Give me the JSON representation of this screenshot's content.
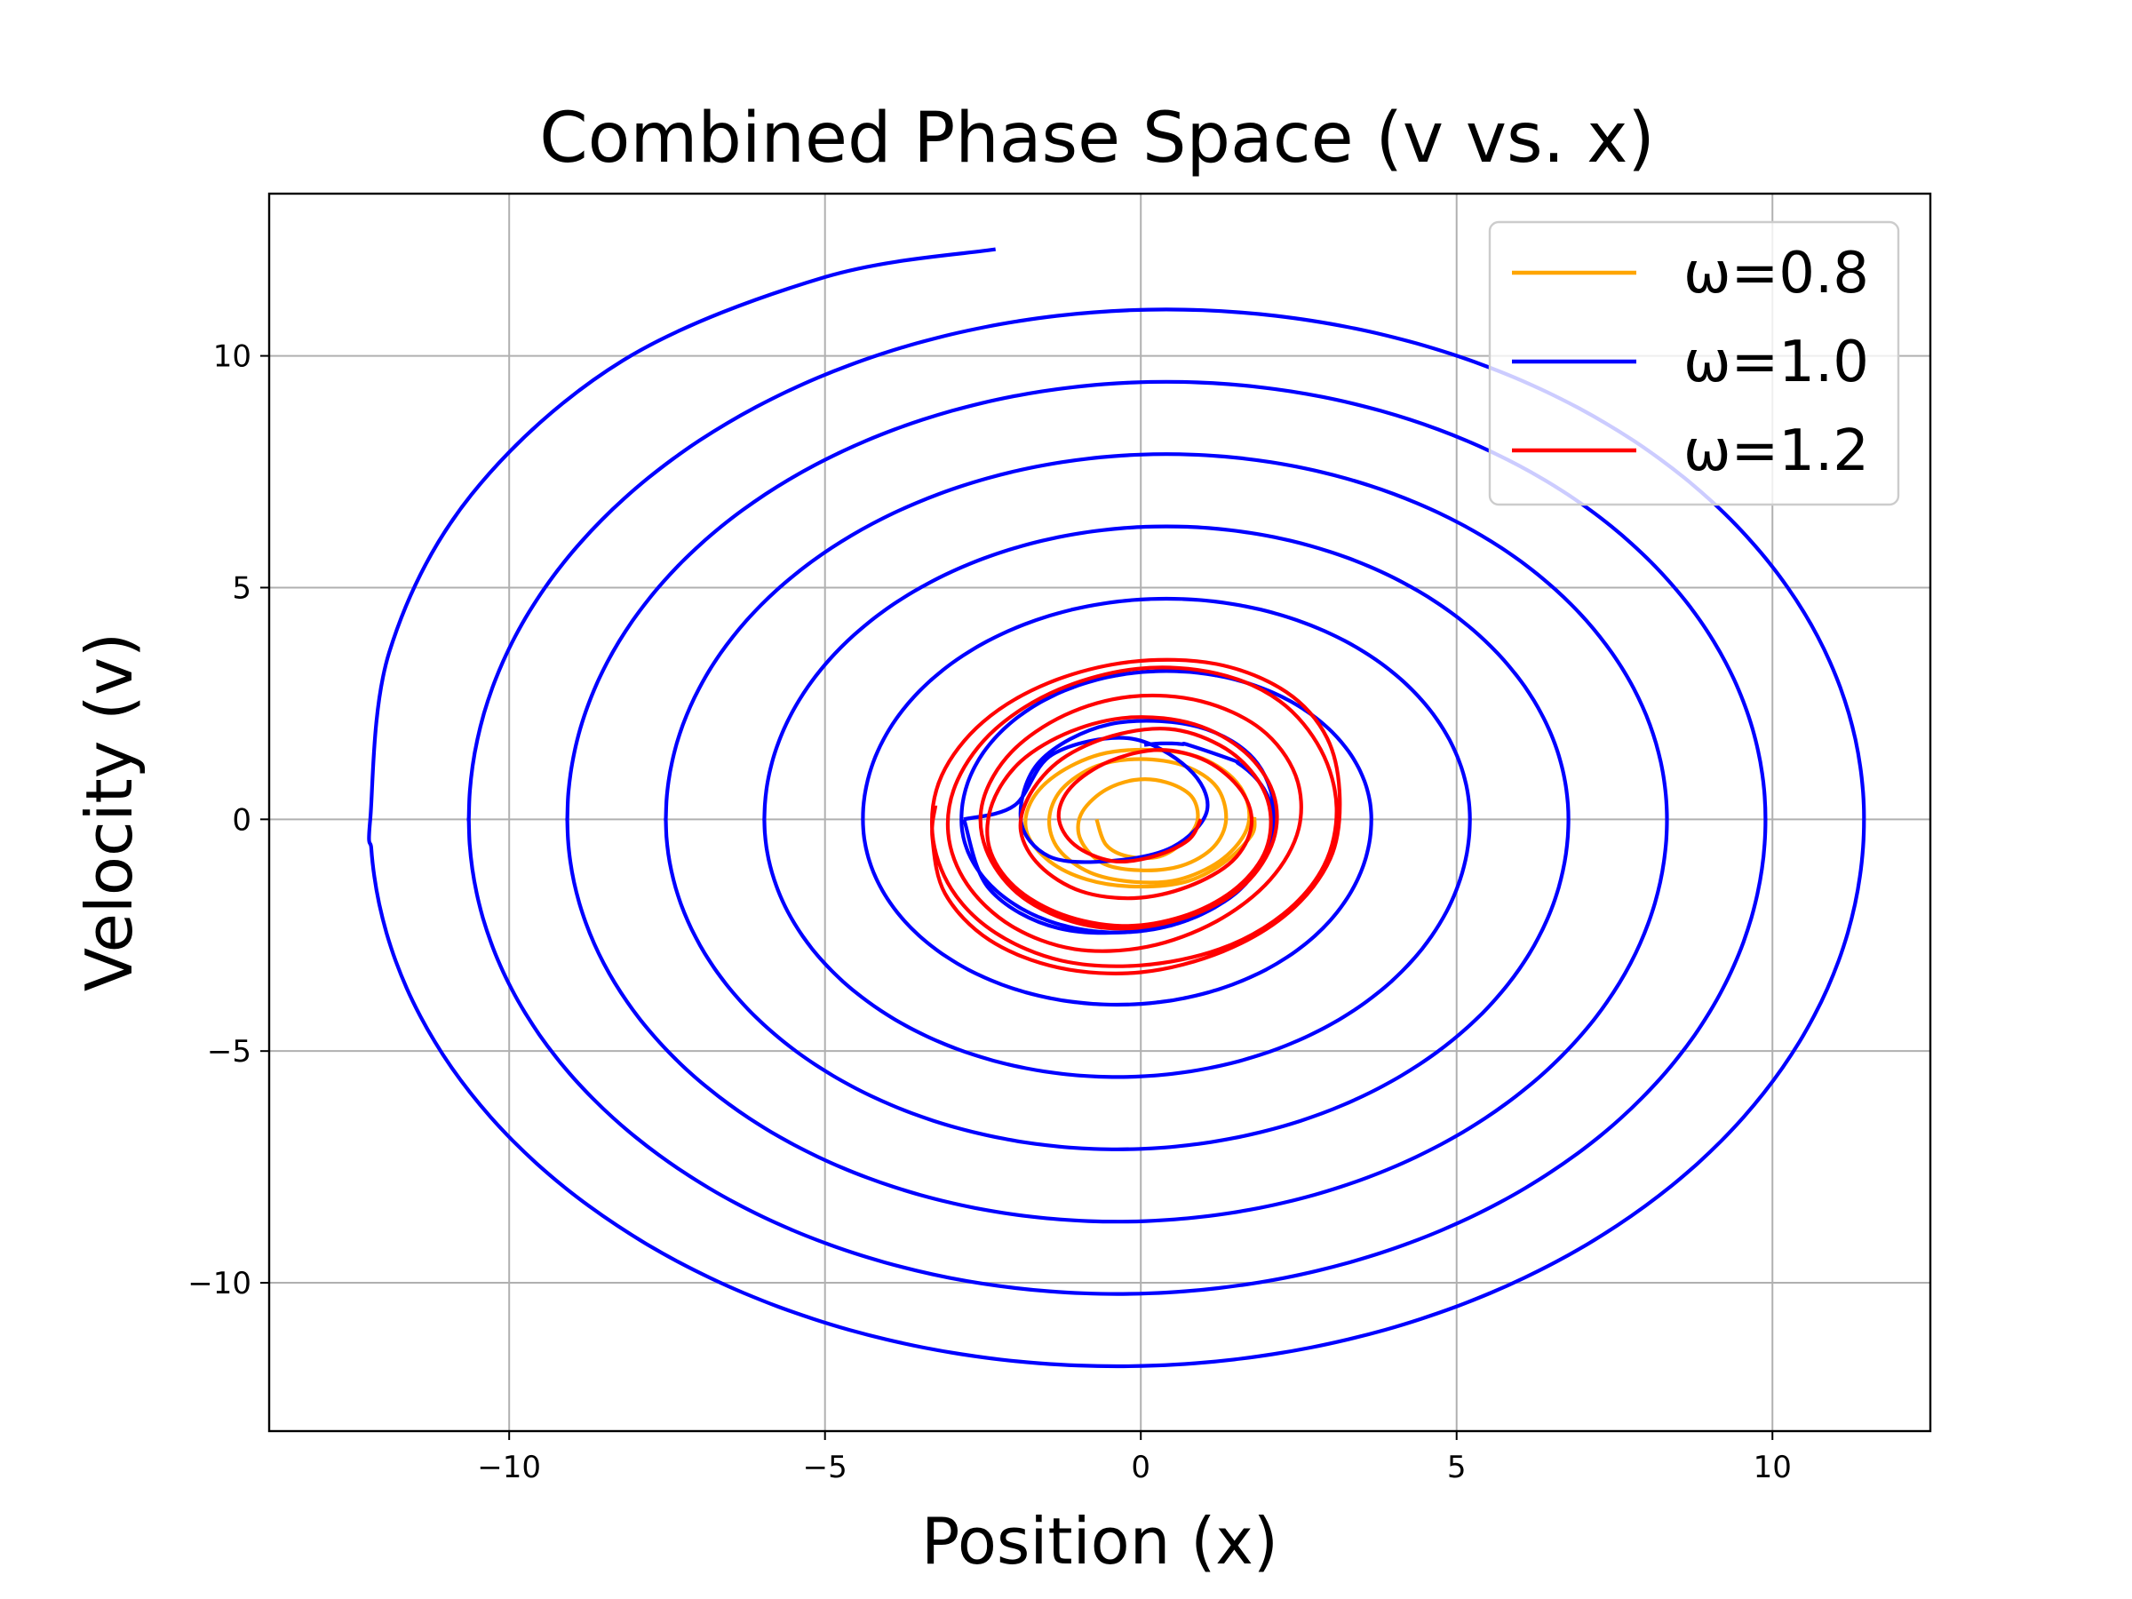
{
  "chart_data": {
    "type": "line",
    "title": "Combined Phase Space (v vs. x)",
    "xlabel": "Position (x)",
    "ylabel": "Velocity (v)",
    "xlim": [
      -13.8,
      12.5
    ],
    "ylim": [
      -13.2,
      13.5
    ],
    "xticks": [
      -10,
      -5,
      0,
      5,
      10
    ],
    "yticks": [
      -10,
      -5,
      0,
      5,
      10
    ],
    "xtick_labels": [
      "−10",
      "−5",
      "0",
      "5",
      "10"
    ],
    "ytick_labels": [
      "−10",
      "−5",
      "0",
      "5",
      "10"
    ],
    "grid": true,
    "legend_position": "top-right",
    "series": [
      {
        "name": "ω=0.8",
        "color": "#FFA500",
        "points": [
          [
            -0.7,
            0.0
          ],
          [
            -0.55,
            -0.55
          ],
          [
            -0.2,
            -0.8
          ],
          [
            0.3,
            -0.8
          ],
          [
            0.7,
            -0.45
          ],
          [
            0.9,
            0.0
          ],
          [
            0.8,
            0.5
          ],
          [
            0.4,
            0.8
          ],
          [
            -0.1,
            0.85
          ],
          [
            -0.6,
            0.6
          ],
          [
            -0.95,
            0.1
          ],
          [
            -0.95,
            -0.45
          ],
          [
            -0.6,
            -0.95
          ],
          [
            0.0,
            -1.1
          ],
          [
            0.65,
            -1.0
          ],
          [
            1.15,
            -0.6
          ],
          [
            1.35,
            0.0
          ],
          [
            1.2,
            0.7
          ],
          [
            0.7,
            1.15
          ],
          [
            0.0,
            1.3
          ],
          [
            -0.7,
            1.15
          ],
          [
            -1.25,
            0.65
          ],
          [
            -1.45,
            0.0
          ],
          [
            -1.3,
            -0.65
          ],
          [
            -0.8,
            -1.15
          ],
          [
            -0.1,
            -1.35
          ],
          [
            0.6,
            -1.3
          ],
          [
            1.25,
            -0.9
          ],
          [
            1.65,
            -0.3
          ],
          [
            1.7,
            0.3
          ],
          [
            1.45,
            0.9
          ],
          [
            0.9,
            1.35
          ],
          [
            0.15,
            1.5
          ],
          [
            -0.65,
            1.4
          ],
          [
            -1.35,
            0.95
          ],
          [
            -1.75,
            0.35
          ],
          [
            -1.8,
            -0.3
          ],
          [
            -1.45,
            -0.9
          ],
          [
            -0.85,
            -1.3
          ],
          [
            -0.1,
            -1.45
          ],
          [
            0.7,
            -1.35
          ],
          [
            1.3,
            -0.95
          ],
          [
            1.75,
            -0.35
          ],
          [
            1.8,
            0.05
          ]
        ]
      },
      {
        "name": "ω=1.0",
        "color": "#0000FF",
        "spiral": {
          "x0": -12.2,
          "dx_per_turn": 1.56,
          "right_start": 11.45,
          "turns": 7,
          "v_top_start": 11.0,
          "v_bottom_start": -11.8,
          "dv_per_turn": 1.56,
          "center_shift": 0.45
        },
        "points": [
          [
            -0.9,
            0.0
          ],
          [
            -0.75,
            -0.6
          ],
          [
            -0.2,
            -0.9
          ],
          [
            0.4,
            -0.85
          ],
          [
            1.0,
            -0.4
          ],
          [
            1.3,
            0.2
          ],
          [
            1.2,
            0.9
          ],
          [
            0.6,
            1.5
          ],
          [
            -0.1,
            1.7
          ],
          [
            -0.9,
            1.4
          ],
          [
            -1.4,
            0.8
          ],
          [
            -1.6,
            0.0
          ],
          [
            -2.2,
            0.0
          ],
          [
            -12.2,
            0.0
          ],
          [
            -2.3,
            12.3
          ]
        ]
      },
      {
        "name": "ω=1.2",
        "color": "#FF0000",
        "points": [
          [
            0.95,
            0.0
          ],
          [
            0.75,
            -0.45
          ],
          [
            0.2,
            -0.8
          ],
          [
            -0.45,
            -0.9
          ],
          [
            -1.05,
            -0.55
          ],
          [
            -1.3,
            0.05
          ],
          [
            -1.1,
            0.7
          ],
          [
            -0.5,
            1.25
          ],
          [
            0.3,
            1.5
          ],
          [
            1.05,
            1.25
          ],
          [
            1.6,
            0.6
          ],
          [
            1.75,
            -0.15
          ],
          [
            1.45,
            -0.9
          ],
          [
            0.75,
            -1.45
          ],
          [
            -0.1,
            -1.7
          ],
          [
            -0.95,
            -1.55
          ],
          [
            -1.6,
            -1.0
          ],
          [
            -1.9,
            -0.25
          ],
          [
            -1.75,
            0.55
          ],
          [
            -1.25,
            1.3
          ],
          [
            -0.45,
            1.8
          ],
          [
            0.45,
            1.95
          ],
          [
            1.25,
            1.6
          ],
          [
            1.8,
            0.95
          ],
          [
            2.05,
            0.15
          ],
          [
            1.95,
            -0.75
          ],
          [
            1.45,
            -1.55
          ],
          [
            0.65,
            -2.1
          ],
          [
            -0.3,
            -2.3
          ],
          [
            -1.25,
            -2.05
          ],
          [
            -2.0,
            -1.45
          ],
          [
            -2.4,
            -0.6
          ],
          [
            -2.35,
            0.35
          ],
          [
            -1.9,
            1.25
          ],
          [
            -1.1,
            1.9
          ],
          [
            -0.15,
            2.2
          ],
          [
            0.85,
            2.05
          ],
          [
            1.65,
            1.45
          ],
          [
            2.1,
            0.55
          ],
          [
            2.1,
            -0.45
          ],
          [
            1.65,
            -1.4
          ],
          [
            0.85,
            -2.05
          ],
          [
            -0.15,
            -2.35
          ],
          [
            -1.1,
            -2.2
          ],
          [
            -1.95,
            -1.6
          ],
          [
            -2.45,
            -0.65
          ],
          [
            -2.5,
            0.4
          ],
          [
            -2.05,
            1.45
          ],
          [
            -1.2,
            2.25
          ],
          [
            -0.15,
            2.65
          ],
          [
            0.95,
            2.55
          ],
          [
            1.9,
            1.95
          ],
          [
            2.45,
            0.95
          ],
          [
            2.5,
            -0.2
          ],
          [
            2.05,
            -1.3
          ],
          [
            1.2,
            -2.2
          ],
          [
            0.1,
            -2.75
          ],
          [
            -1.05,
            -2.8
          ],
          [
            -2.05,
            -2.3
          ],
          [
            -2.75,
            -1.4
          ],
          [
            -3.05,
            -0.3
          ],
          [
            -2.9,
            0.85
          ],
          [
            -2.3,
            1.95
          ],
          [
            -1.3,
            2.8
          ],
          [
            -0.05,
            3.25
          ],
          [
            1.2,
            3.15
          ],
          [
            2.2,
            2.55
          ],
          [
            2.85,
            1.5
          ],
          [
            3.1,
            0.25
          ],
          [
            2.9,
            -1.0
          ],
          [
            2.25,
            -2.05
          ],
          [
            1.25,
            -2.8
          ],
          [
            0.0,
            -3.15
          ],
          [
            -1.25,
            -3.05
          ],
          [
            -2.3,
            -2.45
          ],
          [
            -3.0,
            -1.5
          ],
          [
            -3.3,
            -0.3
          ],
          [
            -3.15,
            0.95
          ],
          [
            -2.5,
            2.1
          ],
          [
            -1.45,
            2.95
          ],
          [
            -0.15,
            3.4
          ],
          [
            1.2,
            3.35
          ],
          [
            2.3,
            2.75
          ],
          [
            2.95,
            1.75
          ],
          [
            3.15,
            0.45
          ],
          [
            3.0,
            -0.85
          ],
          [
            2.35,
            -2.0
          ],
          [
            1.3,
            -2.85
          ],
          [
            0.0,
            -3.3
          ],
          [
            -1.3,
            -3.2
          ],
          [
            -2.4,
            -2.6
          ],
          [
            -3.1,
            -1.6
          ],
          [
            -3.3,
            -0.4
          ],
          [
            -3.25,
            0.3
          ]
        ]
      }
    ]
  }
}
